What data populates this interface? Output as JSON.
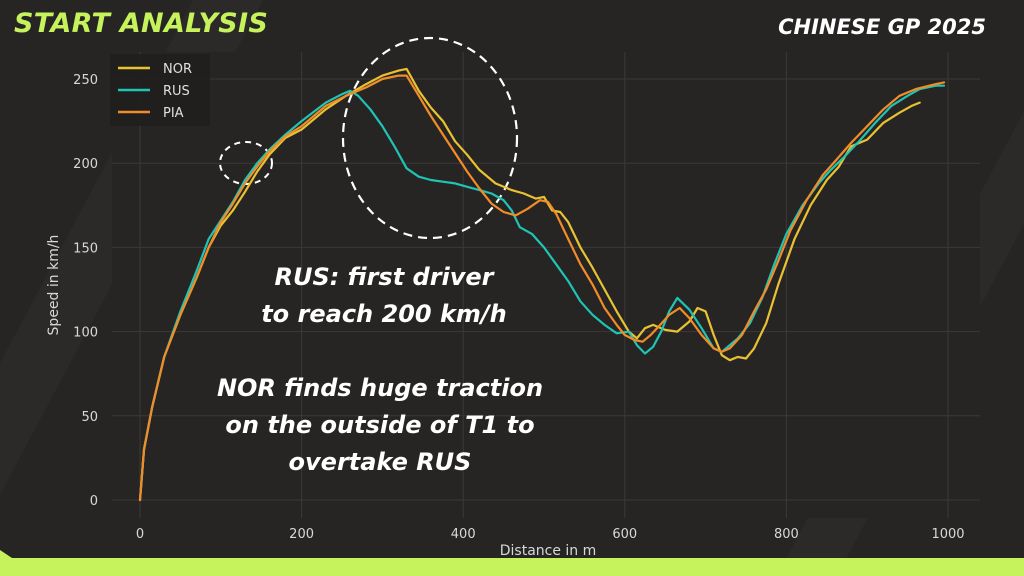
{
  "header": {
    "title": "START ANALYSIS",
    "event": "CHINESE GP 2025"
  },
  "annotations": {
    "line1": "RUS: first driver",
    "line2": "to reach 200 km/h",
    "line3": "NOR finds huge traction",
    "line4": "on the outside of T1 to",
    "line5": "overtake RUS"
  },
  "colors": {
    "NOR": "#e9c232",
    "RUS": "#1fc4b5",
    "PIA": "#f28c28",
    "accent": "#c6f25b",
    "background": "#262524",
    "plot_background": "#262524"
  },
  "chart_data": {
    "type": "line",
    "title": "",
    "xlabel": "Distance in m",
    "ylabel": "Speed in km/h",
    "xlim": [
      -30,
      1030
    ],
    "ylim": [
      -8,
      268
    ],
    "xticks": [
      0,
      200,
      400,
      600,
      800,
      1000
    ],
    "yticks": [
      0,
      50,
      100,
      150,
      200,
      250
    ],
    "grid": true,
    "legend_position": "top-left",
    "series": [
      {
        "name": "NOR",
        "color": "#e9c232",
        "points": [
          [
            0,
            0
          ],
          [
            5,
            30
          ],
          [
            15,
            55
          ],
          [
            30,
            85
          ],
          [
            50,
            110
          ],
          [
            70,
            132
          ],
          [
            85,
            150
          ],
          [
            100,
            163
          ],
          [
            115,
            172
          ],
          [
            130,
            183
          ],
          [
            145,
            195
          ],
          [
            160,
            205
          ],
          [
            180,
            215
          ],
          [
            200,
            220
          ],
          [
            230,
            232
          ],
          [
            255,
            240
          ],
          [
            280,
            247
          ],
          [
            300,
            252
          ],
          [
            320,
            255
          ],
          [
            330,
            256
          ],
          [
            345,
            243
          ],
          [
            360,
            233
          ],
          [
            375,
            225
          ],
          [
            390,
            213
          ],
          [
            405,
            205
          ],
          [
            420,
            196
          ],
          [
            440,
            188
          ],
          [
            460,
            184
          ],
          [
            475,
            182
          ],
          [
            490,
            179
          ],
          [
            500,
            180
          ],
          [
            510,
            172
          ],
          [
            520,
            171
          ],
          [
            530,
            165
          ],
          [
            545,
            150
          ],
          [
            560,
            138
          ],
          [
            575,
            125
          ],
          [
            590,
            112
          ],
          [
            605,
            100
          ],
          [
            615,
            96
          ],
          [
            625,
            102
          ],
          [
            635,
            104
          ],
          [
            650,
            101
          ],
          [
            665,
            100
          ],
          [
            680,
            106
          ],
          [
            690,
            114
          ],
          [
            700,
            112
          ],
          [
            710,
            98
          ],
          [
            720,
            86
          ],
          [
            730,
            83
          ],
          [
            740,
            85
          ],
          [
            750,
            84
          ],
          [
            760,
            90
          ],
          [
            775,
            105
          ],
          [
            790,
            128
          ],
          [
            810,
            155
          ],
          [
            830,
            175
          ],
          [
            850,
            190
          ],
          [
            865,
            198
          ],
          [
            880,
            210
          ],
          [
            900,
            214
          ],
          [
            920,
            224
          ],
          [
            940,
            230
          ],
          [
            955,
            234
          ],
          [
            965,
            236
          ]
        ]
      },
      {
        "name": "RUS",
        "color": "#1fc4b5",
        "points": [
          [
            0,
            0
          ],
          [
            5,
            30
          ],
          [
            15,
            55
          ],
          [
            30,
            85
          ],
          [
            50,
            112
          ],
          [
            70,
            136
          ],
          [
            85,
            155
          ],
          [
            100,
            166
          ],
          [
            115,
            177
          ],
          [
            130,
            190
          ],
          [
            145,
            200
          ],
          [
            160,
            208
          ],
          [
            180,
            217
          ],
          [
            200,
            225
          ],
          [
            230,
            236
          ],
          [
            250,
            241
          ],
          [
            260,
            243
          ],
          [
            270,
            240
          ],
          [
            285,
            232
          ],
          [
            300,
            222
          ],
          [
            315,
            210
          ],
          [
            330,
            197
          ],
          [
            345,
            192
          ],
          [
            360,
            190
          ],
          [
            375,
            189
          ],
          [
            390,
            188
          ],
          [
            405,
            186
          ],
          [
            420,
            184
          ],
          [
            435,
            182
          ],
          [
            450,
            178
          ],
          [
            460,
            172
          ],
          [
            470,
            162
          ],
          [
            485,
            158
          ],
          [
            500,
            150
          ],
          [
            515,
            140
          ],
          [
            530,
            130
          ],
          [
            545,
            118
          ],
          [
            560,
            110
          ],
          [
            575,
            104
          ],
          [
            590,
            99
          ],
          [
            605,
            100
          ],
          [
            615,
            92
          ],
          [
            625,
            87
          ],
          [
            635,
            91
          ],
          [
            645,
            100
          ],
          [
            655,
            112
          ],
          [
            665,
            120
          ],
          [
            680,
            113
          ],
          [
            695,
            102
          ],
          [
            710,
            90
          ],
          [
            720,
            88
          ],
          [
            730,
            92
          ],
          [
            740,
            96
          ],
          [
            755,
            105
          ],
          [
            770,
            120
          ],
          [
            785,
            140
          ],
          [
            800,
            158
          ],
          [
            820,
            175
          ],
          [
            840,
            188
          ],
          [
            855,
            196
          ],
          [
            870,
            203
          ],
          [
            890,
            213
          ],
          [
            910,
            224
          ],
          [
            930,
            234
          ],
          [
            950,
            240
          ],
          [
            965,
            244
          ],
          [
            985,
            246
          ],
          [
            995,
            246
          ]
        ]
      },
      {
        "name": "PIA",
        "color": "#f28c28",
        "points": [
          [
            0,
            0
          ],
          [
            5,
            30
          ],
          [
            15,
            55
          ],
          [
            30,
            85
          ],
          [
            50,
            110
          ],
          [
            70,
            132
          ],
          [
            85,
            150
          ],
          [
            100,
            165
          ],
          [
            115,
            176
          ],
          [
            130,
            188
          ],
          [
            145,
            198
          ],
          [
            160,
            207
          ],
          [
            180,
            216
          ],
          [
            200,
            222
          ],
          [
            230,
            234
          ],
          [
            255,
            240
          ],
          [
            280,
            245
          ],
          [
            300,
            250
          ],
          [
            320,
            252
          ],
          [
            330,
            252
          ],
          [
            345,
            240
          ],
          [
            360,
            228
          ],
          [
            375,
            217
          ],
          [
            390,
            206
          ],
          [
            405,
            195
          ],
          [
            420,
            185
          ],
          [
            435,
            176
          ],
          [
            450,
            171
          ],
          [
            465,
            169
          ],
          [
            480,
            173
          ],
          [
            495,
            178
          ],
          [
            505,
            177
          ],
          [
            515,
            170
          ],
          [
            530,
            155
          ],
          [
            545,
            140
          ],
          [
            560,
            128
          ],
          [
            575,
            114
          ],
          [
            590,
            104
          ],
          [
            600,
            98
          ],
          [
            612,
            95
          ],
          [
            622,
            94
          ],
          [
            632,
            98
          ],
          [
            642,
            103
          ],
          [
            655,
            110
          ],
          [
            668,
            114
          ],
          [
            680,
            108
          ],
          [
            695,
            98
          ],
          [
            710,
            90
          ],
          [
            720,
            88
          ],
          [
            730,
            90
          ],
          [
            745,
            98
          ],
          [
            760,
            112
          ],
          [
            775,
            125
          ],
          [
            790,
            142
          ],
          [
            805,
            160
          ],
          [
            825,
            178
          ],
          [
            845,
            193
          ],
          [
            860,
            201
          ],
          [
            880,
            212
          ],
          [
            900,
            222
          ],
          [
            920,
            232
          ],
          [
            940,
            240
          ],
          [
            960,
            244
          ],
          [
            985,
            247
          ],
          [
            995,
            248
          ]
        ]
      }
    ]
  }
}
